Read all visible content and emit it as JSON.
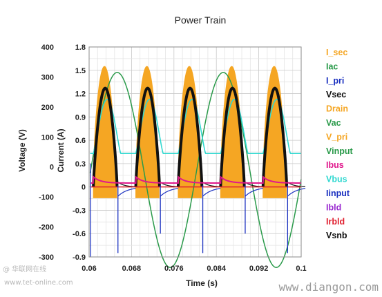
{
  "chart_data": {
    "type": "line",
    "title": "Power Train",
    "xlabel": "Time (s)",
    "ylabel_left": "Voltage (V)",
    "ylabel_right": "Current (A)",
    "xlim": [
      0.06,
      0.1
    ],
    "ylim_voltage": [
      -300,
      400
    ],
    "ylim_current": [
      -0.9,
      1.8
    ],
    "x_ticks": [
      "0.06",
      "0.068",
      "0.076",
      "0.084",
      "0.092",
      "0.1"
    ],
    "y_ticks_voltage": [
      "400",
      "300",
      "200",
      "100",
      "0",
      "-100",
      "-200",
      "-300"
    ],
    "y_ticks_current": [
      "1.8",
      "1.5",
      "1.2",
      "0.9",
      "0.6",
      "0.3",
      "0",
      "-0.3",
      "-0.6",
      "-0.9"
    ],
    "grid": true,
    "legend_position": "right",
    "series": [
      {
        "name": "I_sec",
        "color": "#f5a623",
        "envelope_peak_A": 1.55,
        "envelope_trough_A": -0.12,
        "period_s": 0.008
      },
      {
        "name": "Iac",
        "color": "#2a9a4a"
      },
      {
        "name": "I_pri",
        "color": "#1a30c0",
        "spike_min_A": -0.85
      },
      {
        "name": "Vsec",
        "color": "#111111",
        "peak_A": 1.27
      },
      {
        "name": "Drain",
        "color": "#f5a623"
      },
      {
        "name": "Vac",
        "color": "#2a9a4a",
        "peak_V": 325,
        "trough_V": -225
      },
      {
        "name": "V_pri",
        "color": "#f5a623"
      },
      {
        "name": "Vinput",
        "color": "#2a9a4a",
        "amplitude_V": 325,
        "frequency_Hz": 50
      },
      {
        "name": "Ibus",
        "color": "#e0188c"
      },
      {
        "name": "Vbus",
        "color": "#30d8d0",
        "peak_V": 225,
        "trough_V": 45
      },
      {
        "name": "Iinput",
        "color": "#1a30c0"
      },
      {
        "name": "Ibld",
        "color": "#9a2ad0"
      },
      {
        "name": "Irbld",
        "color": "#e02030"
      },
      {
        "name": "Vsnb",
        "color": "#111111"
      }
    ]
  },
  "watermark": {
    "left_line1": "@ 华联网在线",
    "left_line2": "www.tet-online.com",
    "right": "www.diangon.com"
  }
}
